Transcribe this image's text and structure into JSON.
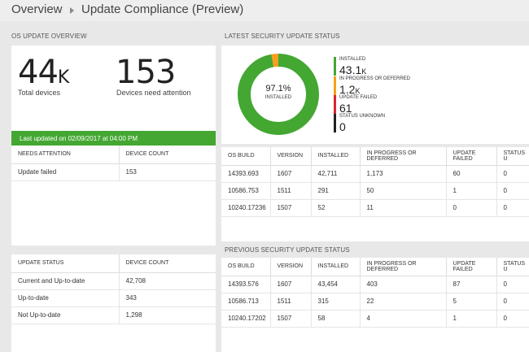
{
  "breadcrumb": {
    "overview": "Overview",
    "current": "Update Compliance (Preview)"
  },
  "os_update_overview": {
    "title": "OS UPDATE OVERVIEW",
    "total_devices_value": "44",
    "total_devices_suffix": "K",
    "total_devices_label": "Total devices",
    "attention_value": "153",
    "attention_label": "Devices need attention",
    "last_updated": "Last updated on 02/09/2017 at 04:00 PM",
    "needs_attention_table": {
      "headers": [
        "NEEDS ATTENTION",
        "DEVICE COUNT"
      ],
      "rows": [
        [
          "Update failed",
          "153"
        ]
      ]
    },
    "update_status_table": {
      "headers": [
        "UPDATE STATUS",
        "DEVICE COUNT"
      ],
      "rows": [
        [
          "Current and Up-to-date",
          "42,708"
        ],
        [
          "Up-to-date",
          "343"
        ],
        [
          "Not Up-to-date",
          "1,298"
        ]
      ]
    }
  },
  "latest_security": {
    "title": "LATEST SECURITY UPDATE STATUS",
    "donut_percent": "97.1%",
    "donut_label": "INSTALLED",
    "donut_fractions": {
      "installed": 0.971,
      "in_progress": 0.027,
      "failed": 0.0014,
      "unknown": 0
    },
    "colors": {
      "installed": "#43a732",
      "in_progress": "#f6a01a",
      "failed": "#d9262f",
      "unknown": "#222222"
    },
    "legend": [
      {
        "label": "INSTALLED",
        "value": "43.1",
        "suffix": "K"
      },
      {
        "label": "IN PROGRESS OR DEFERRED",
        "value": "1.2",
        "suffix": "K"
      },
      {
        "label": "UPDATE FAILED",
        "value": "61",
        "suffix": ""
      },
      {
        "label": "STATUS UNKNOWN",
        "value": "0",
        "suffix": ""
      }
    ],
    "table": {
      "headers": [
        "OS BUILD",
        "VERSION",
        "INSTALLED",
        "IN PROGRESS OR DEFERRED",
        "UPDATE FAILED",
        "STATUS U"
      ],
      "rows": [
        [
          "14393.693",
          "1607",
          "42,711",
          "1,173",
          "60",
          "0"
        ],
        [
          "10586.753",
          "1511",
          "291",
          "50",
          "1",
          "0"
        ],
        [
          "10240.17236",
          "1507",
          "52",
          "11",
          "0",
          "0"
        ]
      ]
    }
  },
  "previous_security": {
    "title": "PREVIOUS SECURITY UPDATE STATUS",
    "table": {
      "headers": [
        "OS BUILD",
        "VERSION",
        "INSTALLED",
        "IN PROGRESS OR DEFERRED",
        "UPDATE FAILED",
        "STATUS U"
      ],
      "rows": [
        [
          "14393.576",
          "1607",
          "43,454",
          "403",
          "87",
          "0"
        ],
        [
          "10586.713",
          "1511",
          "315",
          "22",
          "5",
          "0"
        ],
        [
          "10240.17202",
          "1507",
          "58",
          "4",
          "1",
          "0"
        ]
      ]
    }
  }
}
